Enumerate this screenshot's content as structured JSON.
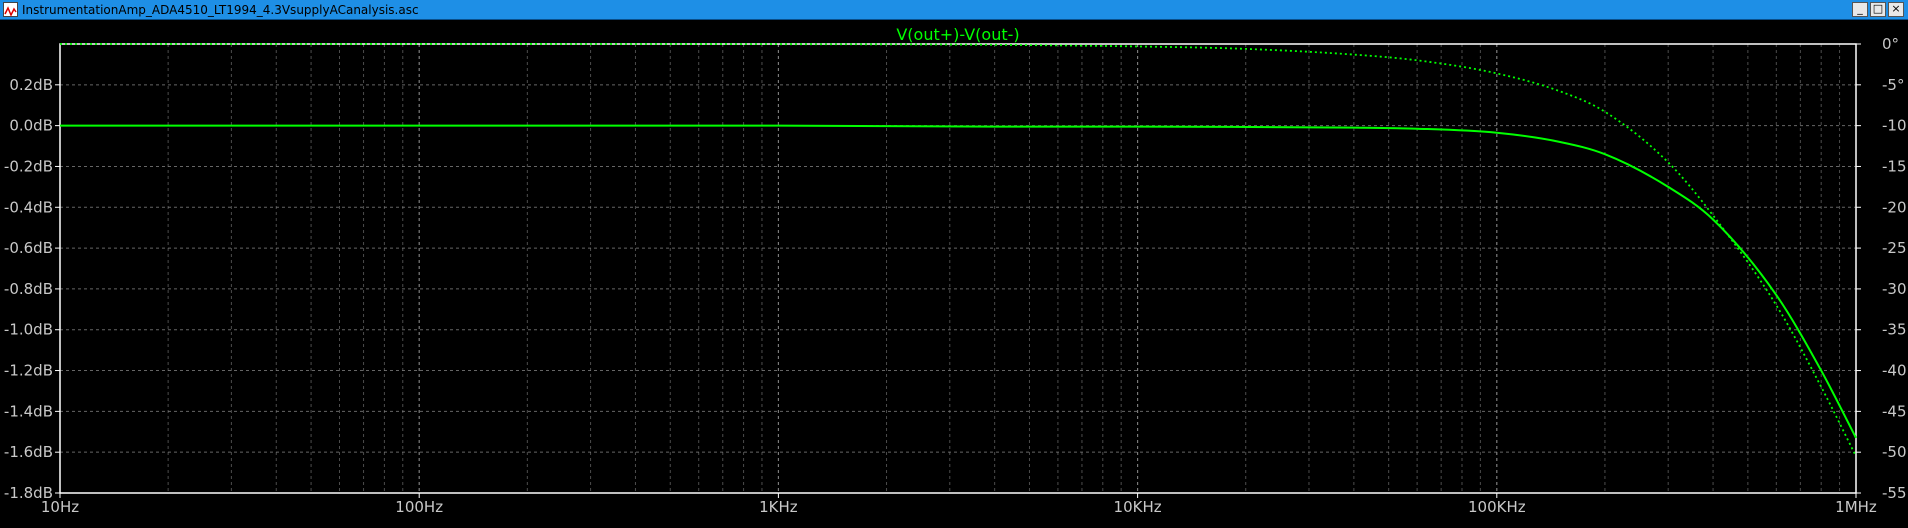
{
  "window": {
    "title": "InstrumentationAmp_ADA4510_LT1994_4.3VsupplyACanalysis.asc",
    "icon": "waveform-icon",
    "buttons": {
      "minimize": "_",
      "restore": "□",
      "close": "×"
    }
  },
  "colors": {
    "background": "#000000",
    "trace": "#00ff00",
    "grid": "#808080",
    "axis_text": "#c8c8c8",
    "titlebar": "#1e8fe6"
  },
  "chart_data": {
    "type": "line",
    "title": "V(out+)-V(out-)",
    "xscale": "log",
    "xlim": [
      10,
      1000000
    ],
    "x_ticks": [
      10,
      100,
      1000,
      10000,
      100000,
      1000000
    ],
    "x_tick_labels": [
      "10Hz",
      "100Hz",
      "1KHz",
      "10KHz",
      "100KHz",
      "1MHz"
    ],
    "ylim_left": [
      -1.8,
      0.4
    ],
    "y_left_ticks": [
      0.2,
      0.0,
      -0.2,
      -0.4,
      -0.6,
      -0.8,
      -1.0,
      -1.2,
      -1.4,
      -1.6,
      -1.8
    ],
    "y_left_tick_labels": [
      "0.2dB",
      "0.0dB",
      "-0.2dB",
      "-0.4dB",
      "-0.6dB",
      "-0.8dB",
      "-1.0dB",
      "-1.2dB",
      "-1.4dB",
      "-1.6dB",
      "-1.8dB"
    ],
    "ylim_right": [
      -55,
      0
    ],
    "y_right_ticks": [
      0,
      -5,
      -10,
      -15,
      -20,
      -25,
      -30,
      -35,
      -40,
      -45,
      -50,
      -55
    ],
    "y_right_tick_labels": [
      "0°",
      "-5°",
      "-10°",
      "-15°",
      "-20°",
      "-25°",
      "-30°",
      "-35°",
      "-40°",
      "-45°",
      "-50°",
      "-55°"
    ],
    "grid": true,
    "series": [
      {
        "style": "solid",
        "axis": "left",
        "x": [
          10,
          1000,
          4000,
          10000,
          40000,
          60000,
          100000,
          150000,
          200000,
          300000,
          400000,
          600000,
          800000,
          1000000
        ],
        "values": [
          0.0,
          0.0,
          -0.005,
          -0.005,
          -0.01,
          -0.015,
          -0.035,
          -0.08,
          -0.14,
          -0.3,
          -0.46,
          -0.83,
          -1.2,
          -1.53
        ]
      },
      {
        "style": "dotted",
        "axis": "right",
        "x": [
          10,
          1000,
          4000,
          10000,
          20000,
          40000,
          60000,
          100000,
          150000,
          200000,
          300000,
          400000,
          600000,
          800000,
          1000000
        ],
        "values": [
          0.0,
          -0.02,
          -0.1,
          -0.3,
          -0.6,
          -1.3,
          -2.0,
          -3.6,
          -5.8,
          -8.3,
          -14.5,
          -21.0,
          -32.0,
          -42.0,
          -50.5
        ]
      }
    ]
  }
}
